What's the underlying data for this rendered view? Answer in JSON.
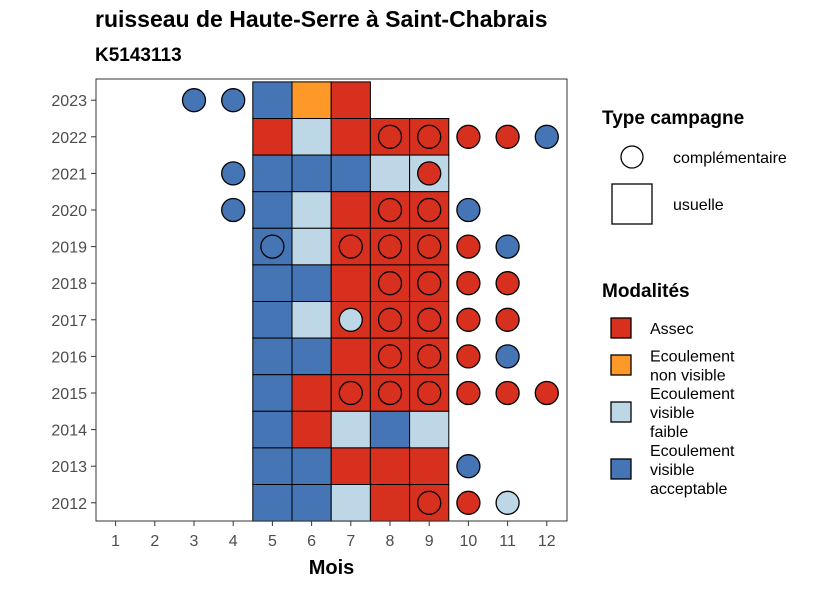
{
  "title": "ruisseau de Haute-Serre à Saint-Chabrais",
  "subtitle": "K5143113",
  "chart_data": {
    "type": "heatmap",
    "xlabel": "Mois",
    "ylabel": "",
    "x_ticks": [
      "1",
      "2",
      "3",
      "4",
      "5",
      "6",
      "7",
      "8",
      "9",
      "10",
      "11",
      "12"
    ],
    "y_ticks": [
      "2012",
      "2013",
      "2014",
      "2015",
      "2016",
      "2017",
      "2018",
      "2019",
      "2020",
      "2021",
      "2022",
      "2023"
    ],
    "colors": {
      "Assec": "#d7301f",
      "Ecoulement non visible": "#fe9929",
      "Ecoulement visible faible": "#bdd7e7",
      "Ecoulement visible acceptable": "#4575b4"
    },
    "legend_type": {
      "title": "Type campagne",
      "items": [
        {
          "label": "complémentaire",
          "shape": "circle"
        },
        {
          "label": "usuelle",
          "shape": "square"
        }
      ]
    },
    "legend_modalites": {
      "title": "Modalités",
      "items": [
        {
          "key": "Assec",
          "lines": [
            "Assec"
          ]
        },
        {
          "key": "Ecoulement non visible",
          "lines": [
            "Ecoulement",
            "non visible"
          ]
        },
        {
          "key": "Ecoulement visible faible",
          "lines": [
            "Ecoulement",
            "visible",
            "faible"
          ]
        },
        {
          "key": "Ecoulement visible acceptable",
          "lines": [
            "Ecoulement",
            "visible",
            "acceptable"
          ]
        }
      ]
    },
    "observations": [
      {
        "year": 2023,
        "month": 3,
        "type": "complémentaire",
        "modalite": "Ecoulement visible acceptable"
      },
      {
        "year": 2023,
        "month": 4,
        "type": "complémentaire",
        "modalite": "Ecoulement visible acceptable"
      },
      {
        "year": 2023,
        "month": 5,
        "type": "usuelle",
        "modalite": "Ecoulement visible acceptable"
      },
      {
        "year": 2023,
        "month": 6,
        "type": "usuelle",
        "modalite": "Ecoulement non visible"
      },
      {
        "year": 2023,
        "month": 7,
        "type": "usuelle",
        "modalite": "Assec"
      },
      {
        "year": 2022,
        "month": 5,
        "type": "usuelle",
        "modalite": "Assec"
      },
      {
        "year": 2022,
        "month": 6,
        "type": "usuelle",
        "modalite": "Ecoulement visible faible"
      },
      {
        "year": 2022,
        "month": 7,
        "type": "usuelle",
        "modalite": "Assec"
      },
      {
        "year": 2022,
        "month": 8,
        "type": "usuelle",
        "modalite": "Assec"
      },
      {
        "year": 2022,
        "month": 8,
        "type": "complémentaire",
        "modalite": "Assec"
      },
      {
        "year": 2022,
        "month": 9,
        "type": "usuelle",
        "modalite": "Assec"
      },
      {
        "year": 2022,
        "month": 9,
        "type": "complémentaire",
        "modalite": "Assec"
      },
      {
        "year": 2022,
        "month": 10,
        "type": "complémentaire",
        "modalite": "Assec"
      },
      {
        "year": 2022,
        "month": 11,
        "type": "complémentaire",
        "modalite": "Assec"
      },
      {
        "year": 2022,
        "month": 12,
        "type": "complémentaire",
        "modalite": "Ecoulement visible acceptable"
      },
      {
        "year": 2021,
        "month": 4,
        "type": "complémentaire",
        "modalite": "Ecoulement visible acceptable"
      },
      {
        "year": 2021,
        "month": 5,
        "type": "usuelle",
        "modalite": "Ecoulement visible acceptable"
      },
      {
        "year": 2021,
        "month": 6,
        "type": "usuelle",
        "modalite": "Ecoulement visible acceptable"
      },
      {
        "year": 2021,
        "month": 7,
        "type": "usuelle",
        "modalite": "Ecoulement visible acceptable"
      },
      {
        "year": 2021,
        "month": 8,
        "type": "usuelle",
        "modalite": "Ecoulement visible faible"
      },
      {
        "year": 2021,
        "month": 9,
        "type": "usuelle",
        "modalite": "Ecoulement visible faible"
      },
      {
        "year": 2021,
        "month": 9,
        "type": "complémentaire",
        "modalite": "Assec"
      },
      {
        "year": 2020,
        "month": 4,
        "type": "complémentaire",
        "modalite": "Ecoulement visible acceptable"
      },
      {
        "year": 2020,
        "month": 5,
        "type": "usuelle",
        "modalite": "Ecoulement visible acceptable"
      },
      {
        "year": 2020,
        "month": 6,
        "type": "usuelle",
        "modalite": "Ecoulement visible faible"
      },
      {
        "year": 2020,
        "month": 7,
        "type": "usuelle",
        "modalite": "Assec"
      },
      {
        "year": 2020,
        "month": 8,
        "type": "usuelle",
        "modalite": "Assec"
      },
      {
        "year": 2020,
        "month": 8,
        "type": "complémentaire",
        "modalite": "Assec"
      },
      {
        "year": 2020,
        "month": 9,
        "type": "usuelle",
        "modalite": "Assec"
      },
      {
        "year": 2020,
        "month": 9,
        "type": "complémentaire",
        "modalite": "Assec"
      },
      {
        "year": 2020,
        "month": 10,
        "type": "complémentaire",
        "modalite": "Ecoulement visible acceptable"
      },
      {
        "year": 2019,
        "month": 5,
        "type": "usuelle",
        "modalite": "Ecoulement visible acceptable"
      },
      {
        "year": 2019,
        "month": 5,
        "type": "complémentaire",
        "modalite": "Ecoulement visible acceptable"
      },
      {
        "year": 2019,
        "month": 6,
        "type": "usuelle",
        "modalite": "Ecoulement visible faible"
      },
      {
        "year": 2019,
        "month": 7,
        "type": "usuelle",
        "modalite": "Assec"
      },
      {
        "year": 2019,
        "month": 7,
        "type": "complémentaire",
        "modalite": "Assec"
      },
      {
        "year": 2019,
        "month": 8,
        "type": "usuelle",
        "modalite": "Assec"
      },
      {
        "year": 2019,
        "month": 8,
        "type": "complémentaire",
        "modalite": "Assec"
      },
      {
        "year": 2019,
        "month": 9,
        "type": "usuelle",
        "modalite": "Assec"
      },
      {
        "year": 2019,
        "month": 9,
        "type": "complémentaire",
        "modalite": "Assec"
      },
      {
        "year": 2019,
        "month": 10,
        "type": "complémentaire",
        "modalite": "Assec"
      },
      {
        "year": 2019,
        "month": 11,
        "type": "complémentaire",
        "modalite": "Ecoulement visible acceptable"
      },
      {
        "year": 2018,
        "month": 5,
        "type": "usuelle",
        "modalite": "Ecoulement visible acceptable"
      },
      {
        "year": 2018,
        "month": 6,
        "type": "usuelle",
        "modalite": "Ecoulement visible acceptable"
      },
      {
        "year": 2018,
        "month": 7,
        "type": "usuelle",
        "modalite": "Assec"
      },
      {
        "year": 2018,
        "month": 8,
        "type": "usuelle",
        "modalite": "Assec"
      },
      {
        "year": 2018,
        "month": 8,
        "type": "complémentaire",
        "modalite": "Assec"
      },
      {
        "year": 2018,
        "month": 9,
        "type": "usuelle",
        "modalite": "Assec"
      },
      {
        "year": 2018,
        "month": 9,
        "type": "complémentaire",
        "modalite": "Assec"
      },
      {
        "year": 2018,
        "month": 10,
        "type": "complémentaire",
        "modalite": "Assec"
      },
      {
        "year": 2018,
        "month": 11,
        "type": "complémentaire",
        "modalite": "Assec"
      },
      {
        "year": 2017,
        "month": 5,
        "type": "usuelle",
        "modalite": "Ecoulement visible acceptable"
      },
      {
        "year": 2017,
        "month": 6,
        "type": "usuelle",
        "modalite": "Ecoulement visible faible"
      },
      {
        "year": 2017,
        "month": 7,
        "type": "usuelle",
        "modalite": "Assec"
      },
      {
        "year": 2017,
        "month": 7,
        "type": "complémentaire",
        "modalite": "Ecoulement visible faible"
      },
      {
        "year": 2017,
        "month": 8,
        "type": "usuelle",
        "modalite": "Assec"
      },
      {
        "year": 2017,
        "month": 8,
        "type": "complémentaire",
        "modalite": "Assec"
      },
      {
        "year": 2017,
        "month": 9,
        "type": "usuelle",
        "modalite": "Assec"
      },
      {
        "year": 2017,
        "month": 9,
        "type": "complémentaire",
        "modalite": "Assec"
      },
      {
        "year": 2017,
        "month": 10,
        "type": "complémentaire",
        "modalite": "Assec"
      },
      {
        "year": 2017,
        "month": 11,
        "type": "complémentaire",
        "modalite": "Assec"
      },
      {
        "year": 2016,
        "month": 5,
        "type": "usuelle",
        "modalite": "Ecoulement visible acceptable"
      },
      {
        "year": 2016,
        "month": 6,
        "type": "usuelle",
        "modalite": "Ecoulement visible acceptable"
      },
      {
        "year": 2016,
        "month": 7,
        "type": "usuelle",
        "modalite": "Assec"
      },
      {
        "year": 2016,
        "month": 8,
        "type": "usuelle",
        "modalite": "Assec"
      },
      {
        "year": 2016,
        "month": 8,
        "type": "complémentaire",
        "modalite": "Assec"
      },
      {
        "year": 2016,
        "month": 9,
        "type": "usuelle",
        "modalite": "Assec"
      },
      {
        "year": 2016,
        "month": 9,
        "type": "complémentaire",
        "modalite": "Assec"
      },
      {
        "year": 2016,
        "month": 10,
        "type": "complémentaire",
        "modalite": "Assec"
      },
      {
        "year": 2016,
        "month": 11,
        "type": "complémentaire",
        "modalite": "Ecoulement visible acceptable"
      },
      {
        "year": 2015,
        "month": 5,
        "type": "usuelle",
        "modalite": "Ecoulement visible acceptable"
      },
      {
        "year": 2015,
        "month": 6,
        "type": "usuelle",
        "modalite": "Assec"
      },
      {
        "year": 2015,
        "month": 7,
        "type": "usuelle",
        "modalite": "Assec"
      },
      {
        "year": 2015,
        "month": 7,
        "type": "complémentaire",
        "modalite": "Assec"
      },
      {
        "year": 2015,
        "month": 8,
        "type": "usuelle",
        "modalite": "Assec"
      },
      {
        "year": 2015,
        "month": 8,
        "type": "complémentaire",
        "modalite": "Assec"
      },
      {
        "year": 2015,
        "month": 9,
        "type": "usuelle",
        "modalite": "Assec"
      },
      {
        "year": 2015,
        "month": 9,
        "type": "complémentaire",
        "modalite": "Assec"
      },
      {
        "year": 2015,
        "month": 10,
        "type": "complémentaire",
        "modalite": "Assec"
      },
      {
        "year": 2015,
        "month": 11,
        "type": "complémentaire",
        "modalite": "Assec"
      },
      {
        "year": 2015,
        "month": 12,
        "type": "complémentaire",
        "modalite": "Assec"
      },
      {
        "year": 2014,
        "month": 5,
        "type": "usuelle",
        "modalite": "Ecoulement visible acceptable"
      },
      {
        "year": 2014,
        "month": 6,
        "type": "usuelle",
        "modalite": "Assec"
      },
      {
        "year": 2014,
        "month": 7,
        "type": "usuelle",
        "modalite": "Ecoulement visible faible"
      },
      {
        "year": 2014,
        "month": 8,
        "type": "usuelle",
        "modalite": "Ecoulement visible acceptable"
      },
      {
        "year": 2014,
        "month": 9,
        "type": "usuelle",
        "modalite": "Ecoulement visible faible"
      },
      {
        "year": 2013,
        "month": 5,
        "type": "usuelle",
        "modalite": "Ecoulement visible acceptable"
      },
      {
        "year": 2013,
        "month": 6,
        "type": "usuelle",
        "modalite": "Ecoulement visible acceptable"
      },
      {
        "year": 2013,
        "month": 7,
        "type": "usuelle",
        "modalite": "Assec"
      },
      {
        "year": 2013,
        "month": 8,
        "type": "usuelle",
        "modalite": "Assec"
      },
      {
        "year": 2013,
        "month": 9,
        "type": "usuelle",
        "modalite": "Assec"
      },
      {
        "year": 2013,
        "month": 10,
        "type": "complémentaire",
        "modalite": "Ecoulement visible acceptable"
      },
      {
        "year": 2012,
        "month": 5,
        "type": "usuelle",
        "modalite": "Ecoulement visible acceptable"
      },
      {
        "year": 2012,
        "month": 6,
        "type": "usuelle",
        "modalite": "Ecoulement visible acceptable"
      },
      {
        "year": 2012,
        "month": 7,
        "type": "usuelle",
        "modalite": "Ecoulement visible faible"
      },
      {
        "year": 2012,
        "month": 8,
        "type": "usuelle",
        "modalite": "Assec"
      },
      {
        "year": 2012,
        "month": 9,
        "type": "usuelle",
        "modalite": "Assec"
      },
      {
        "year": 2012,
        "month": 9,
        "type": "complémentaire",
        "modalite": "Assec"
      },
      {
        "year": 2012,
        "month": 10,
        "type": "complémentaire",
        "modalite": "Assec"
      },
      {
        "year": 2012,
        "month": 11,
        "type": "complémentaire",
        "modalite": "Ecoulement visible faible"
      }
    ]
  }
}
